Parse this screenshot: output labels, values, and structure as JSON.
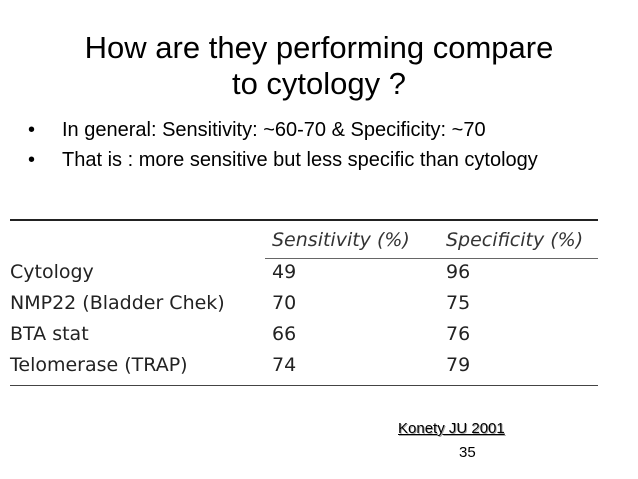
{
  "slide": {
    "title_line1": "How are they performing compare",
    "title_line2": "to cytology ?",
    "bullets": [
      {
        "text": "In general: Sensitivity: ~60-70 & Specificity: ~70"
      },
      {
        "text": "That is : more sensitive but less specific than cytology"
      }
    ],
    "bullet_glyph": "•",
    "table": {
      "headers": [
        "",
        "Sensitivity (%)",
        "Specificity (%)"
      ],
      "rows": [
        {
          "name": "Cytology",
          "sensitivity": "49",
          "specificity": "96"
        },
        {
          "name": "NMP22 (Bladder Chek)",
          "sensitivity": "70",
          "specificity": "75"
        },
        {
          "name": "BTA stat",
          "sensitivity": "66",
          "specificity": "76"
        },
        {
          "name": "Telomerase (TRAP)",
          "sensitivity": "74",
          "specificity": "79"
        }
      ]
    },
    "citation": "Konety JU 2001",
    "page_number": "35"
  }
}
